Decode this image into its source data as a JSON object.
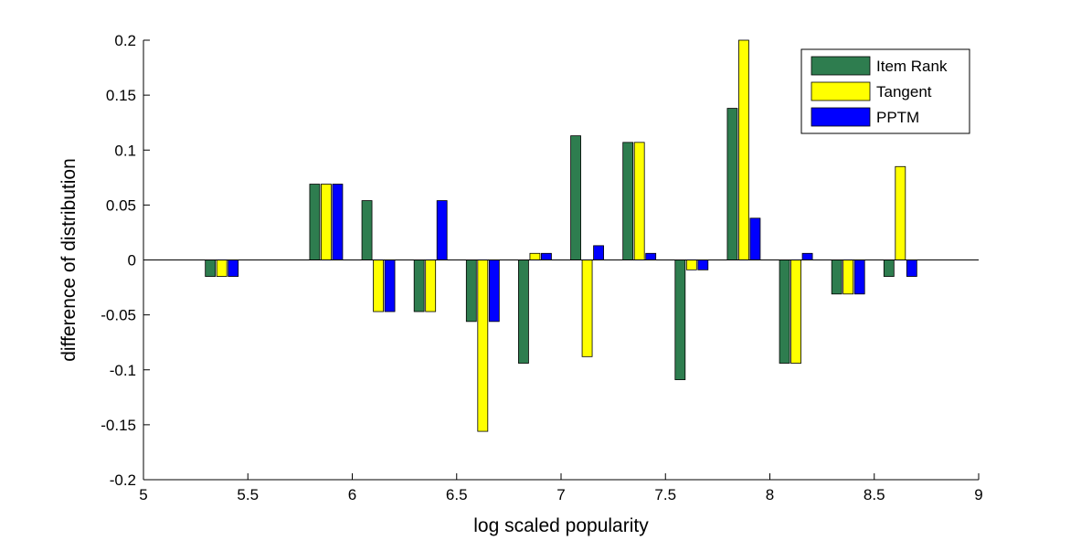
{
  "chart_data": {
    "type": "bar",
    "title": "",
    "xlabel": "log scaled popularity",
    "ylabel": "difference of distribution",
    "xlim": [
      5,
      9
    ],
    "ylim": [
      -0.2,
      0.2
    ],
    "x_ticks": [
      "5",
      "5.5",
      "6",
      "6.5",
      "7",
      "7.5",
      "8",
      "8.5",
      "9"
    ],
    "y_ticks": [
      "-0.2",
      "-0.15",
      "-0.1",
      "-0.05",
      "0",
      "0.05",
      "0.1",
      "0.15",
      "0.2"
    ],
    "grid": false,
    "legend_position": "top-right",
    "x": [
      5.375,
      5.875,
      6.125,
      6.375,
      6.625,
      6.875,
      7.125,
      7.375,
      7.625,
      7.875,
      8.125,
      8.375,
      8.625
    ],
    "series": [
      {
        "name": "Item Rank",
        "color": "#2e7d4f",
        "values": [
          -0.015,
          0.069,
          0.054,
          -0.047,
          -0.056,
          -0.094,
          0.113,
          0.107,
          -0.109,
          0.138,
          -0.094,
          -0.031,
          -0.015
        ]
      },
      {
        "name": "Tangent",
        "color": "#ffff00",
        "values": [
          -0.015,
          0.069,
          -0.047,
          -0.047,
          -0.156,
          0.006,
          -0.088,
          0.107,
          -0.009,
          0.2,
          -0.094,
          -0.031,
          0.085
        ]
      },
      {
        "name": "PPTM",
        "color": "#0000ff",
        "values": [
          -0.015,
          0.069,
          -0.047,
          0.054,
          -0.056,
          0.006,
          0.013,
          0.006,
          -0.009,
          0.038,
          0.006,
          -0.031,
          -0.015
        ]
      }
    ]
  }
}
